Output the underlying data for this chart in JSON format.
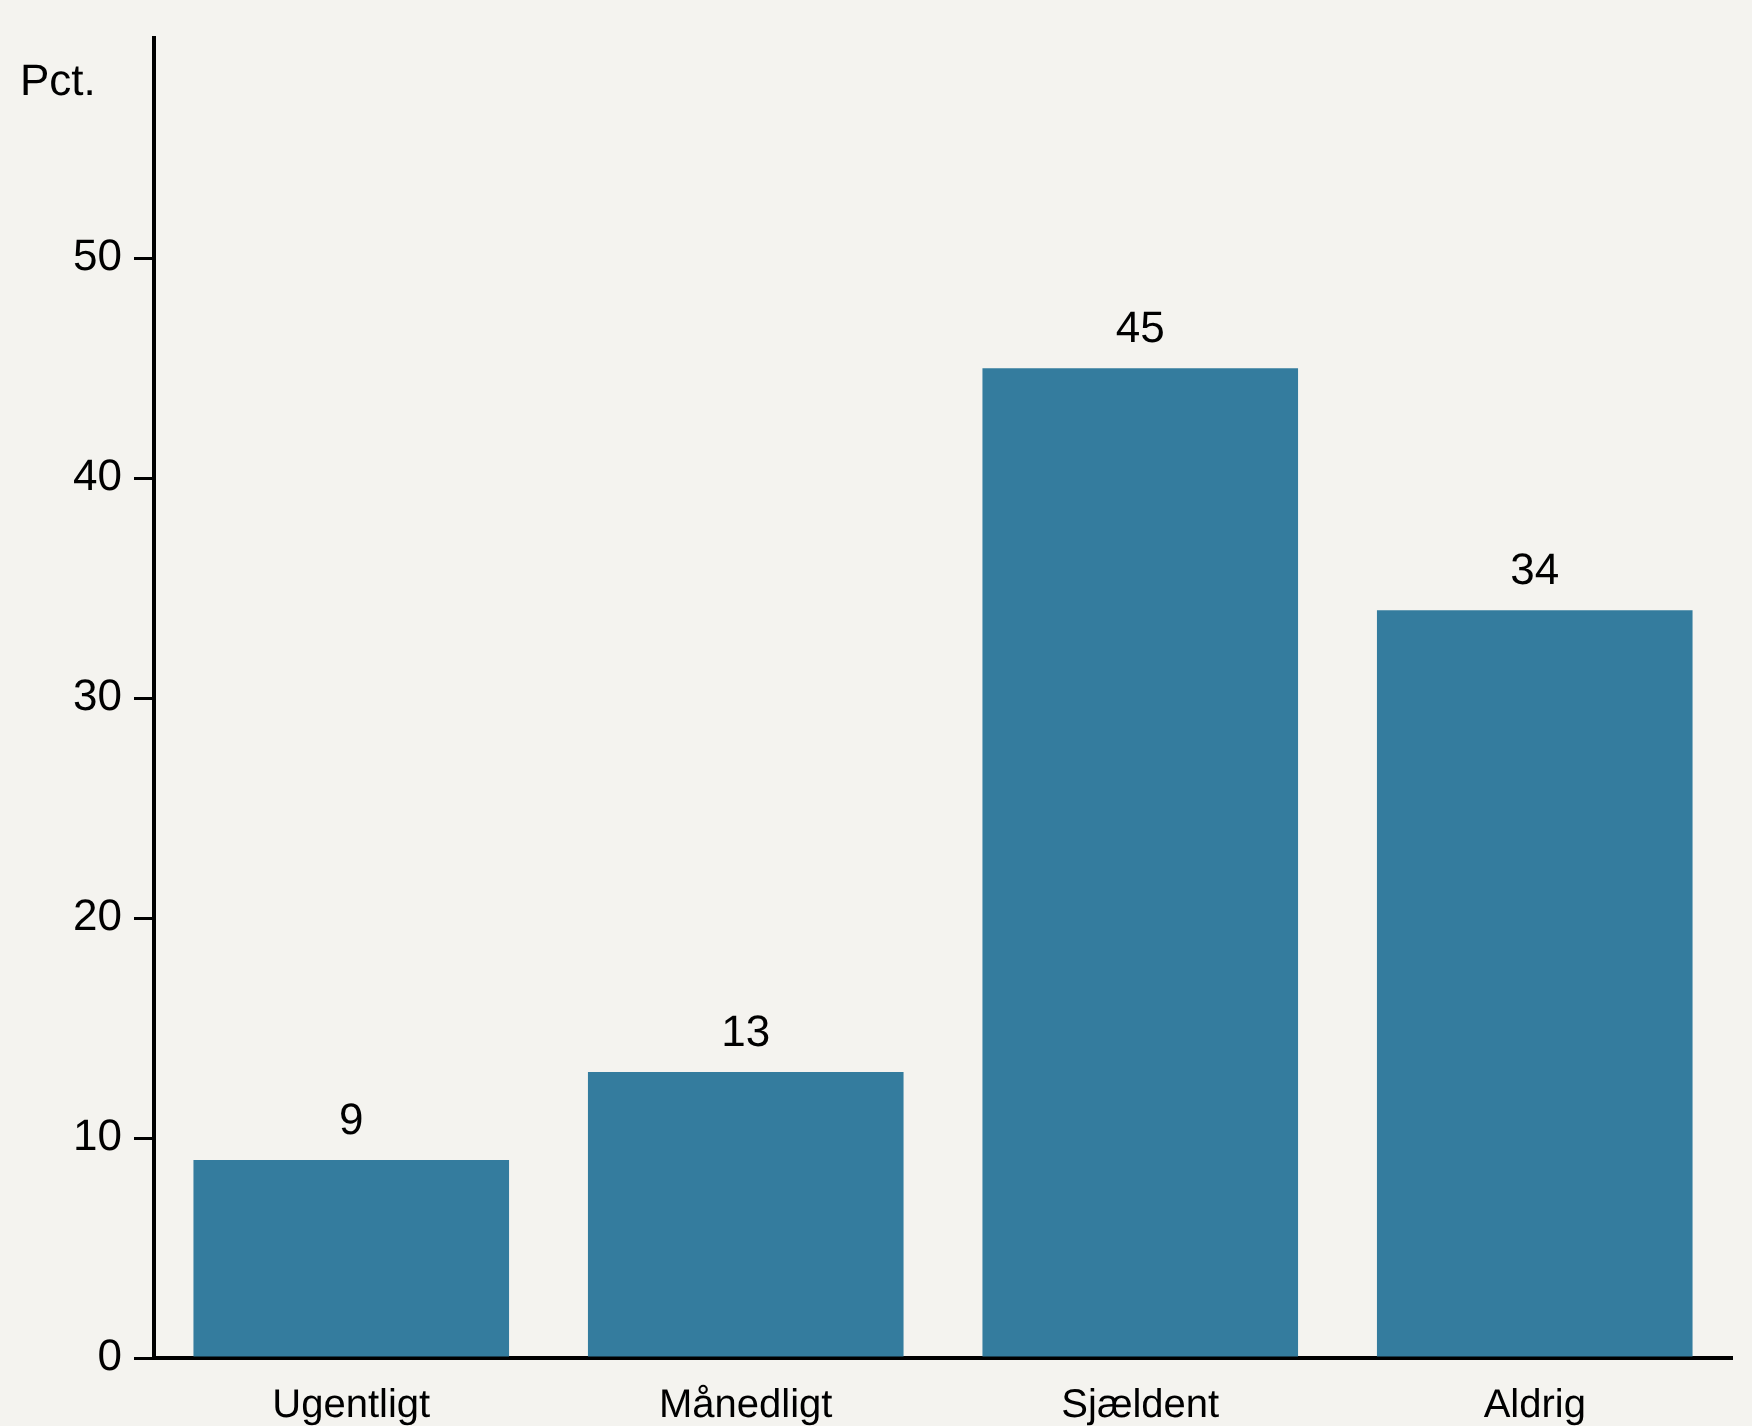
{
  "chart_data": {
    "type": "bar",
    "ylabel": "Pct.",
    "categories": [
      "Ugentligt",
      "Månedligt",
      "Sjældent",
      "Aldrig"
    ],
    "values": [
      9,
      13,
      45,
      34
    ],
    "color": "#347c9e",
    "ylim": [
      0,
      60
    ],
    "yticks": [
      0,
      10,
      20,
      30,
      40,
      50
    ],
    "grid": false,
    "legend": false,
    "data_labels": true
  }
}
